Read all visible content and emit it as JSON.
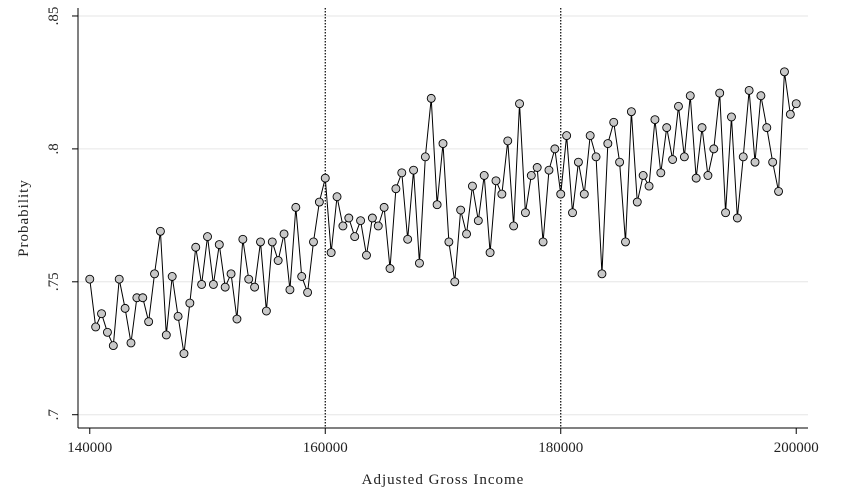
{
  "chart_data": {
    "type": "line",
    "x_label": "Adjusted Gross Income",
    "y_label": "Probability",
    "x": [
      140000,
      140500,
      141000,
      141500,
      142000,
      142500,
      143000,
      143500,
      144000,
      144500,
      145000,
      145500,
      146000,
      146500,
      147000,
      147500,
      148000,
      148500,
      149000,
      149500,
      150000,
      150500,
      151000,
      151500,
      152000,
      152500,
      153000,
      153500,
      154000,
      154500,
      155000,
      155500,
      156000,
      156500,
      157000,
      157500,
      158000,
      158500,
      159000,
      159500,
      160000,
      160500,
      161000,
      161500,
      162000,
      162500,
      163000,
      163500,
      164000,
      164500,
      165000,
      165500,
      166000,
      166500,
      167000,
      167500,
      168000,
      168500,
      169000,
      169500,
      170000,
      170500,
      171000,
      171500,
      172000,
      172500,
      173000,
      173500,
      174000,
      174500,
      175000,
      175500,
      176000,
      176500,
      177000,
      177500,
      178000,
      178500,
      179000,
      179500,
      180000,
      180500,
      181000,
      181500,
      182000,
      182500,
      183000,
      183500,
      184000,
      184500,
      185000,
      185500,
      186000,
      186500,
      187000,
      187500,
      188000,
      188500,
      189000,
      189500,
      190000,
      190500,
      191000,
      191500,
      192000,
      192500,
      193000,
      193500,
      194000,
      194500,
      195000,
      195500,
      196000,
      196500,
      197000,
      197500,
      198000,
      198500,
      199000,
      199500,
      200000
    ],
    "values": [
      0.751,
      0.733,
      0.738,
      0.731,
      0.726,
      0.751,
      0.74,
      0.727,
      0.744,
      0.744,
      0.735,
      0.753,
      0.769,
      0.73,
      0.752,
      0.737,
      0.723,
      0.742,
      0.763,
      0.749,
      0.767,
      0.749,
      0.764,
      0.748,
      0.753,
      0.736,
      0.766,
      0.751,
      0.748,
      0.765,
      0.739,
      0.765,
      0.758,
      0.768,
      0.747,
      0.778,
      0.752,
      0.746,
      0.765,
      0.78,
      0.789,
      0.761,
      0.782,
      0.771,
      0.774,
      0.767,
      0.773,
      0.76,
      0.774,
      0.771,
      0.778,
      0.755,
      0.785,
      0.791,
      0.766,
      0.792,
      0.757,
      0.797,
      0.819,
      0.779,
      0.802,
      0.765,
      0.75,
      0.777,
      0.768,
      0.786,
      0.773,
      0.79,
      0.761,
      0.788,
      0.783,
      0.803,
      0.771,
      0.817,
      0.776,
      0.79,
      0.793,
      0.765,
      0.792,
      0.8,
      0.783,
      0.805,
      0.776,
      0.795,
      0.783,
      0.805,
      0.797,
      0.753,
      0.802,
      0.81,
      0.795,
      0.765,
      0.814,
      0.78,
      0.79,
      0.786,
      0.811,
      0.791,
      0.808,
      0.796,
      0.816,
      0.797,
      0.82,
      0.789,
      0.808,
      0.79,
      0.8,
      0.821,
      0.776,
      0.812,
      0.774,
      0.797,
      0.822,
      0.795,
      0.82,
      0.808,
      0.795,
      0.784,
      0.829,
      0.813,
      0.817
    ],
    "color": "#000000",
    "marker_color": "#c8c8c8",
    "xlim": [
      139000,
      201000
    ],
    "ylim": [
      0.695,
      0.853
    ],
    "xticks": [
      140000,
      160000,
      180000,
      200000
    ],
    "yticks": [
      {
        "value": 0.7,
        "label": ".7"
      },
      {
        "value": 0.75,
        "label": ".75"
      },
      {
        "value": 0.8,
        "label": ".8"
      },
      {
        "value": 0.85,
        "label": ".85"
      }
    ],
    "vlines": [
      160000,
      180000
    ],
    "grid": true
  }
}
